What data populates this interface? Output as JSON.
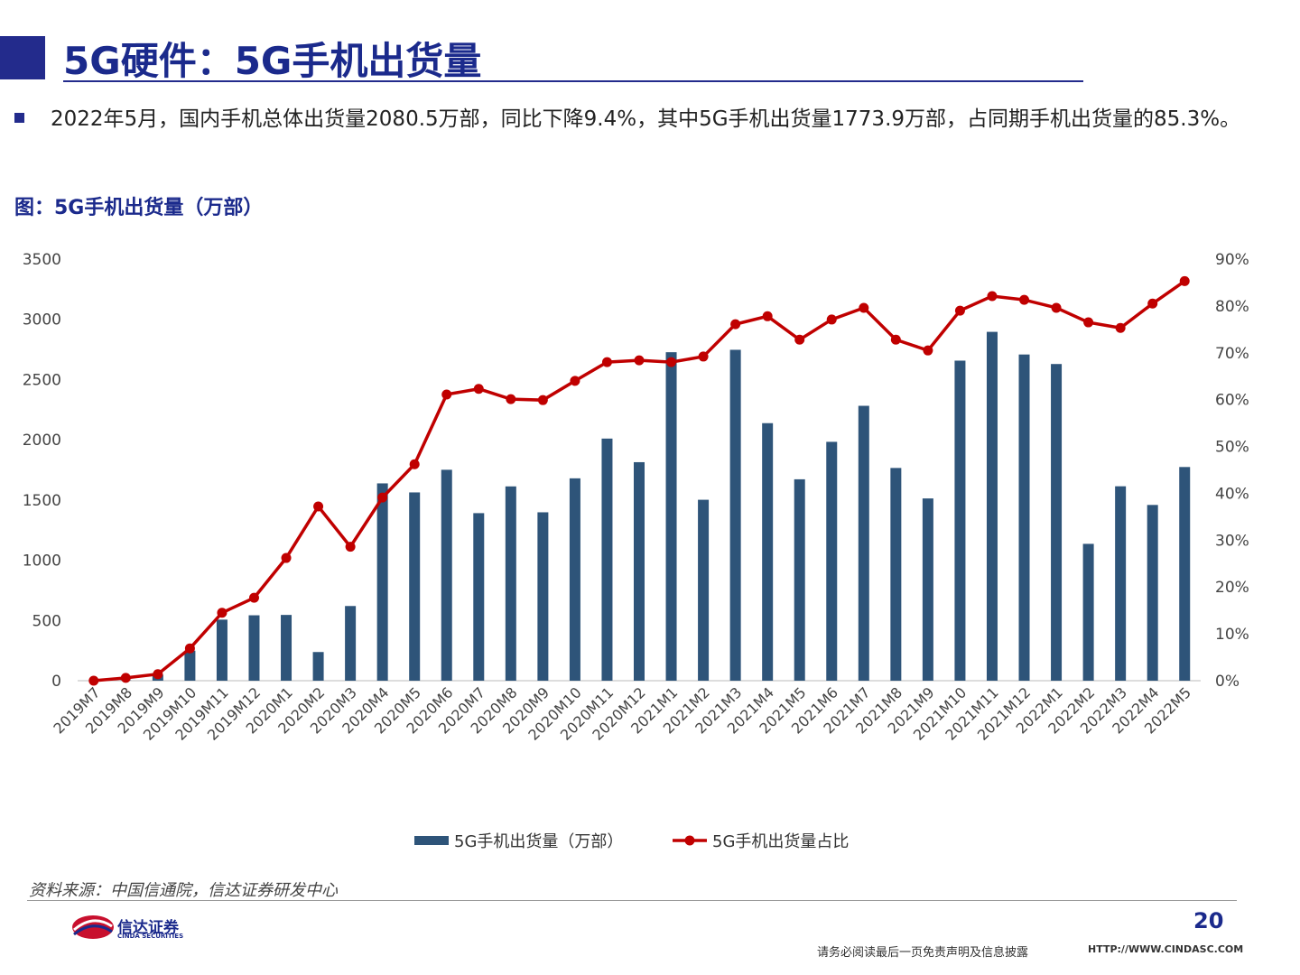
{
  "header": {
    "title": "5G硬件：5G手机出货量"
  },
  "bullet": "2022年5月，国内手机总体出货量2080.5万部，同比下降9.4%，其中5G手机出货量1773.9万部，占同期手机出货量的85.3%。",
  "chart_data": {
    "type": "bar-line",
    "title": "图：5G手机出货量（万部）",
    "categories": [
      "2019M7",
      "2019M8",
      "2019M9",
      "2019M10",
      "2019M11",
      "2019M12",
      "2020M1",
      "2020M2",
      "2020M3",
      "2020M4",
      "2020M5",
      "2020M6",
      "2020M7",
      "2020M8",
      "2020M9",
      "2020M10",
      "2020M11",
      "2020M12",
      "2021M1",
      "2021M2",
      "2021M3",
      "2021M4",
      "2021M5",
      "2021M6",
      "2021M7",
      "2021M8",
      "2021M9",
      "2021M10",
      "2021M11",
      "2021M12",
      "2022M1",
      "2022M2",
      "2022M3",
      "2022M4",
      "2022M5"
    ],
    "series": [
      {
        "name": "5G手机出货量（万部）",
        "type": "bar",
        "color": "#2e5479",
        "values": [
          0,
          3,
          50,
          249,
          507,
          543,
          546,
          238,
          620,
          1638,
          1563,
          1751,
          1391,
          1613,
          1398,
          1680,
          2010,
          1814,
          2727,
          1502,
          2747,
          2138,
          1672,
          1983,
          2282,
          1766,
          1513,
          2657,
          2896,
          2708,
          2629,
          1136,
          1614,
          1459,
          1773.9
        ]
      },
      {
        "name": "5G手机出货量占比",
        "type": "line",
        "axis": "y2",
        "color": "#c00000",
        "values": [
          0,
          0.6,
          1.4,
          6.9,
          14.5,
          17.7,
          26.2,
          37.2,
          28.6,
          39.1,
          46.2,
          61.1,
          62.3,
          60.1,
          59.9,
          64,
          68,
          68.4,
          68,
          69.2,
          76.1,
          77.8,
          72.8,
          77.1,
          79.6,
          72.8,
          70.5,
          79,
          82.1,
          81.3,
          79.6,
          76.5,
          75.3,
          80.5,
          85.3
        ]
      }
    ],
    "ylim": [
      0,
      3500
    ],
    "yticks": [
      0,
      500,
      1000,
      1500,
      2000,
      2500,
      3000,
      3500
    ],
    "y2lim": [
      0,
      90
    ],
    "y2ticks": [
      {
        "value": 0,
        "label": "0%"
      },
      {
        "value": 10,
        "label": "10%"
      },
      {
        "value": 20,
        "label": "20%"
      },
      {
        "value": 30,
        "label": "30%"
      },
      {
        "value": 40,
        "label": "40%"
      },
      {
        "value": 50,
        "label": "50%"
      },
      {
        "value": 60,
        "label": "60%"
      },
      {
        "value": 70,
        "label": "70%"
      },
      {
        "value": 80,
        "label": "80%"
      },
      {
        "value": 90,
        "label": "90%"
      }
    ],
    "legend": "bottom"
  },
  "source": "资料来源：中国信通院，信达证券研发中心",
  "footer": {
    "page": "20",
    "logo_cn": "信达证券",
    "logo_en": "CINDA SECURITIES",
    "disclaimer": "请务必阅读最后一页免责声明及信息披露",
    "url": "HTTP://WWW.CINDASC.COM"
  }
}
